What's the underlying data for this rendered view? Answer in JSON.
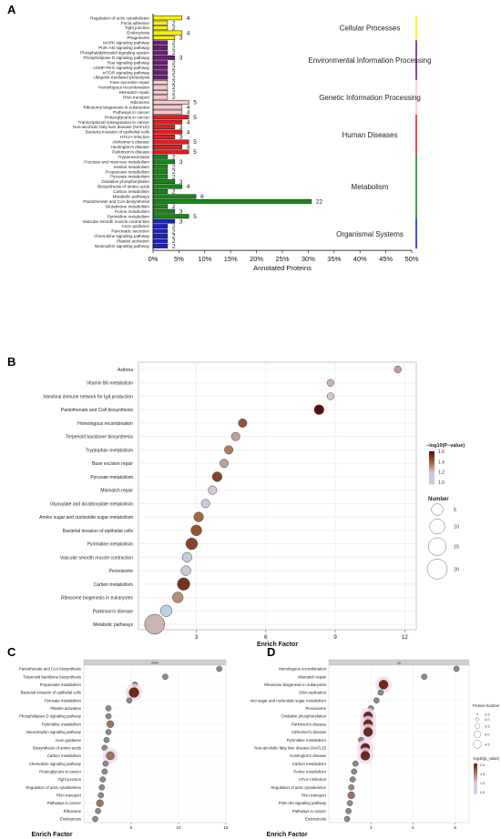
{
  "chart_data": [
    {
      "type": "bar",
      "panel_label": "A",
      "xlabel": "Annotated Proteins",
      "xlim": [
        0,
        50
      ],
      "xticks": [
        "0%",
        "5%",
        "10%",
        "15%",
        "20%",
        "25%",
        "30%",
        "35%",
        "40%",
        "45%",
        "50%"
      ],
      "groups": [
        {
          "name": "Cellular Processes",
          "color": "#f5f200",
          "categories": [
            "Regulation of actin cytoskeleton",
            "Focal adhesion",
            "Tight junction",
            "Endocytosis",
            "Phagosome"
          ],
          "counts": [
            4,
            2,
            2,
            4,
            3
          ],
          "values": [
            5.6,
            2.8,
            2.8,
            5.6,
            4.2
          ]
        },
        {
          "name": "Environmental Information Processing",
          "color": "#6f1a7d",
          "categories": [
            "MAPK signaling pathway",
            "PI3K-Akt signaling pathway",
            "Phosphatidylinositol signaling system",
            "Phospholipase D signaling pathway",
            "Ras signaling pathway",
            "cGMP-PKG signaling pathway",
            "mTOR signaling pathway",
            "Ubiquitin-mediated proteolysis"
          ],
          "counts": [
            2,
            2,
            2,
            3,
            2,
            2,
            2,
            2
          ],
          "values": [
            2.8,
            2.8,
            2.8,
            4.2,
            2.8,
            2.8,
            2.8,
            2.8
          ]
        },
        {
          "name": "Genetic Information Processing",
          "color": "#f7c9d0",
          "categories": [
            "Fase excretion repair",
            "Homologous recombination",
            "-Mismatch repair",
            "RNA transport",
            "Ribosome",
            "Ribosome biogenesis in eukaryotes",
            "Pathways in cancer"
          ],
          "counts": [
            2,
            2,
            2,
            2,
            5,
            4,
            4
          ],
          "values": [
            2.8,
            2.8,
            2.8,
            2.8,
            6.9,
            5.6,
            5.6
          ]
        },
        {
          "name": "Human Diseases",
          "color": "#e81b1b",
          "categories": [
            "Proteoglycans in cancer",
            "Transcriptional misregulation in cancer",
            "Non-alcoholic fatty liver disease (NAFLD)",
            "Bacteria invasion of epithelial cells",
            "HTLV-I infection",
            "Alzheimer's disease",
            "Huntington's disease",
            "Parkinson's disease"
          ],
          "counts": [
            5,
            4,
            3,
            4,
            3,
            5,
            4,
            5
          ],
          "values": [
            6.9,
            5.6,
            4.2,
            5.6,
            4.2,
            6.9,
            5.6,
            6.9
          ]
        },
        {
          "name": "Metabolism",
          "color": "#158a15",
          "categories": [
            "Trypanosomiasis",
            "Fructose and mannose metabolism",
            "Inositol metabolism",
            "Propanoate metabolism",
            "Pyruvate metabolism",
            "Oxidative phosphorylation",
            "Biosynthesis of amino acids",
            "Carbon metabolism",
            "Metabolic pathways",
            "Pantothenate and CoA biosynthesis",
            "Glutathione metabolism",
            "Purine metabolism",
            "Pyrimidine metabolism"
          ],
          "counts": [
            2,
            3,
            2,
            2,
            2,
            3,
            4,
            2,
            6,
            22,
            2,
            3,
            5
          ],
          "values": [
            2.8,
            4.2,
            2.8,
            2.8,
            2.8,
            4.2,
            5.6,
            2.8,
            8.3,
            30.6,
            2.8,
            4.2,
            6.9
          ]
        },
        {
          "name": "Organismal Systems",
          "color": "#1822cc",
          "categories": [
            "Vascular smooth muscle contraction",
            "Axon guidance",
            "Pancreatic secretion",
            "Chemokine signaling pathway",
            "Platelet activation",
            "Neutrophin signaling pathway"
          ],
          "counts": [
            3,
            2,
            2,
            2,
            2,
            2
          ],
          "values": [
            4.2,
            2.8,
            2.8,
            2.8,
            2.8,
            2.8
          ]
        }
      ]
    },
    {
      "type": "scatter",
      "panel_label": "B",
      "xlabel": "Enrich Factor",
      "xlim": [
        0.5,
        12.5
      ],
      "xticks": [
        3,
        6,
        9,
        12
      ],
      "color_label": "−log10(P−value)",
      "color_ticks": [
        "1.6",
        "1.4",
        "1.2",
        "1.0"
      ],
      "color_range": [
        0.9,
        1.65
      ],
      "color_scale": [
        "#5a0e0e",
        "#a06840",
        "#d6c7d0",
        "#b8d2e8"
      ],
      "size_label": "Number",
      "size_ticks": [
        5,
        10,
        15,
        20
      ],
      "categories": [
        "Asthma",
        "Vitamin B6 metabolism",
        "Intestinal immune network for IgA production",
        "Pantothenate and CoA biosynthesis",
        "Homologous recombination",
        "Terpenoid backbone biosynthesis",
        "Tryptophan metabolism",
        "Base excision repair",
        "Pyruvate metabolism",
        "Mismatch repair",
        "Glyoxylate and dicarboxylate metabolism",
        "Amino sugar and nucleotide sugar metabolism",
        "Bacterial invasion of epithelial cells",
        "Pyrimidine metabolism",
        "Vascular smooth muscle contraction",
        "Peroxisome",
        "Carbon metabolism",
        "Ribosome biogenesis in eukaryotes",
        "Parkinson's disease",
        "Metabolic pathways"
      ],
      "x": [
        11.7,
        8.8,
        8.8,
        8.3,
        5.0,
        4.7,
        4.4,
        4.2,
        3.9,
        3.7,
        3.4,
        3.1,
        3.0,
        2.8,
        2.6,
        2.55,
        2.45,
        2.2,
        1.7,
        1.2
      ],
      "sizes": [
        1,
        1,
        1,
        3,
        2,
        2,
        2,
        2,
        3,
        2,
        2,
        3,
        4,
        5,
        3,
        3,
        6,
        4,
        5,
        20
      ],
      "pvalue": [
        1.25,
        1.2,
        1.15,
        1.65,
        1.45,
        1.25,
        1.35,
        1.25,
        1.5,
        1.1,
        1.0,
        1.4,
        1.45,
        1.5,
        1.05,
        1.1,
        1.55,
        1.3,
        0.95,
        1.2
      ]
    },
    {
      "type": "scatter",
      "panel_label": "C",
      "strip_label": "down",
      "xlabel": "Enrich Factor",
      "xlim": [
        0,
        15
      ],
      "xticks": [
        5,
        10,
        15
      ],
      "categories": [
        "Pantothenate and CoA biosynthesis",
        "Terpenoid backbone biosynthesis",
        "Propanoate metabolism",
        "Bacterial invasion of epithelial cells",
        "Pyruvate metabolism",
        "Platelet activation",
        "Phospholipase D signaling pathway",
        "Pyrimidine metabolism",
        "Neurotrophin signaling pathway",
        "Axon guidance",
        "Biosynthesis of amino acids",
        "Carbon metabolism",
        "Chemokine signaling pathway",
        "Proteoglycans in cancer",
        "Tight junction",
        "Regulation of actin cytoskeleton",
        "RNA transport",
        "Pathways in cancer",
        "Ribosome",
        "Endocytosis"
      ],
      "x": [
        14.3,
        8.6,
        5.4,
        5.3,
        4.8,
        2.6,
        2.6,
        2.8,
        2.6,
        2.4,
        2.2,
        2.8,
        2.3,
        2.2,
        2.0,
        1.9,
        1.8,
        1.7,
        1.5,
        1.2
      ],
      "sizes": [
        1,
        1,
        1,
        5,
        1,
        1,
        1,
        2,
        1,
        1,
        1,
        3,
        1,
        1,
        1,
        1,
        1,
        2,
        1,
        1
      ]
    },
    {
      "type": "scatter",
      "panel_label": "D",
      "strip_label": "up",
      "xlabel": "Enrich Factor",
      "xlim": [
        0,
        10
      ],
      "xticks": [
        3,
        6,
        9
      ],
      "size_label": "Protein Number",
      "size_ticks": [
        "2.5",
        "3.0",
        "3.5",
        "4.0",
        "4.5"
      ],
      "color_label": "-log10(p_value)",
      "color_ticks": [
        "2.0",
        "1.5",
        "1.0",
        "0.5"
      ],
      "categories": [
        "Homologous recombination",
        "Mismatch repair",
        "Ribosome biogenesis in eukaryotes",
        "DNA replication",
        "Amino sugar and nucleotide sugar metabolism",
        "Peroxisome",
        "Oxidative phosphorylation",
        "Parkinson's disease",
        "Alzheimer's disease",
        "Pyrimidine metabolism",
        "Non-alcoholic fatty liver disease (NAFLD)",
        "Huntington's disease",
        "Carbon metabolism",
        "Purine metabolism",
        "HTLV-I infection",
        "Regulation of actin cytoskeleton",
        "RNA transport",
        "PI3K-Akt signaling pathway",
        "Pathways in cancer",
        "Endocytosis"
      ],
      "x": [
        9.1,
        6.8,
        3.9,
        3.7,
        3.4,
        3.0,
        2.8,
        2.8,
        2.8,
        2.3,
        2.6,
        2.6,
        1.9,
        1.8,
        1.7,
        1.6,
        1.6,
        1.5,
        1.4,
        1.3
      ],
      "sizes": [
        1,
        1,
        4,
        1,
        1,
        1,
        4,
        4,
        4,
        1,
        4,
        4,
        1,
        1,
        1,
        1,
        2,
        1,
        1,
        1
      ]
    }
  ]
}
